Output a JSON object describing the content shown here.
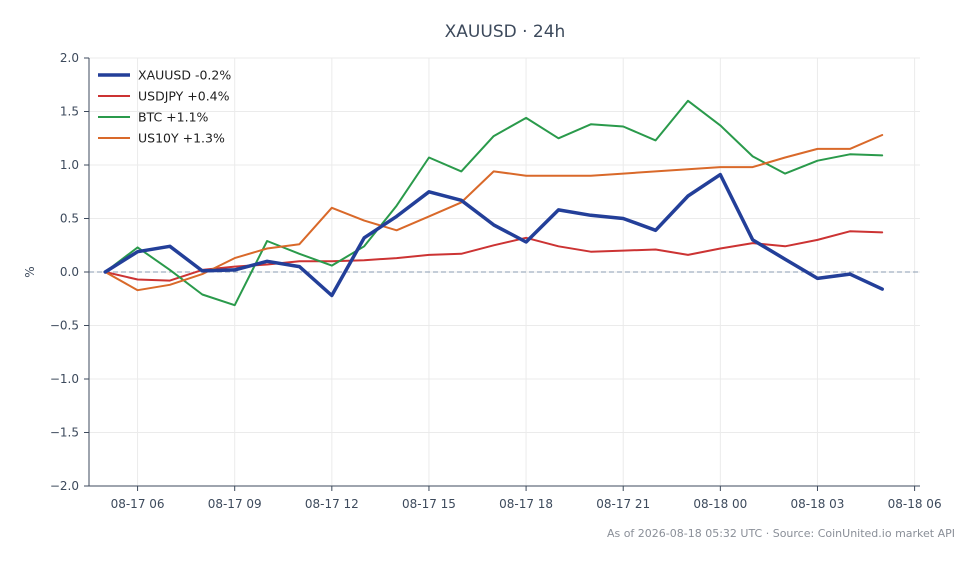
{
  "chart_data": {
    "type": "line",
    "title": "XAUUSD · 24h",
    "xlabel": "",
    "ylabel": "%",
    "ylim": [
      -2.0,
      2.0
    ],
    "yticks": [
      -2.0,
      -1.5,
      -1.0,
      -0.5,
      0.0,
      0.5,
      1.0,
      1.5,
      2.0
    ],
    "ytick_labels": [
      "−2.0",
      "−1.5",
      "−1.0",
      "−0.5",
      "0.0",
      "0.5",
      "1.0",
      "1.5",
      "2.0"
    ],
    "xlim": [
      "2026-08-17 04:30",
      "2026-08-18 06:10"
    ],
    "xticks": [
      "2026-08-17 06:00",
      "2026-08-17 09:00",
      "2026-08-17 12:00",
      "2026-08-17 15:00",
      "2026-08-17 18:00",
      "2026-08-17 21:00",
      "2026-08-18 00:00",
      "2026-08-18 03:00",
      "2026-08-18 06:00"
    ],
    "xtick_labels": [
      "08-17 06",
      "08-17 09",
      "08-17 12",
      "08-17 15",
      "08-17 18",
      "08-17 21",
      "08-18 00",
      "08-18 03",
      "08-18 06"
    ],
    "x": [
      "2026-08-17 05:00",
      "2026-08-17 06:00",
      "2026-08-17 07:00",
      "2026-08-17 08:00",
      "2026-08-17 09:00",
      "2026-08-17 10:00",
      "2026-08-17 11:00",
      "2026-08-17 12:00",
      "2026-08-17 13:00",
      "2026-08-17 14:00",
      "2026-08-17 15:00",
      "2026-08-17 16:00",
      "2026-08-17 17:00",
      "2026-08-17 18:00",
      "2026-08-17 19:00",
      "2026-08-17 20:00",
      "2026-08-17 21:00",
      "2026-08-17 22:00",
      "2026-08-17 23:00",
      "2026-08-18 00:00",
      "2026-08-18 01:00",
      "2026-08-18 02:00",
      "2026-08-18 03:00",
      "2026-08-18 04:00",
      "2026-08-18 05:00"
    ],
    "grid": true,
    "legend_position": "top-left",
    "baseline": 0.0,
    "series": [
      {
        "name": "XAUUSD -0.2%",
        "color": "#233f99",
        "values": [
          0.0,
          0.19,
          0.24,
          0.01,
          0.02,
          0.1,
          0.05,
          -0.22,
          0.32,
          0.52,
          0.75,
          0.67,
          0.44,
          0.28,
          0.58,
          0.53,
          0.5,
          0.39,
          0.71,
          0.91,
          0.3,
          0.12,
          -0.06,
          -0.02,
          -0.16
        ]
      },
      {
        "name": "USDJPY +0.4%",
        "color": "#cc3333",
        "values": [
          0.0,
          -0.07,
          -0.08,
          0.02,
          0.05,
          0.07,
          0.1,
          0.1,
          0.11,
          0.13,
          0.16,
          0.17,
          0.25,
          0.32,
          0.24,
          0.19,
          0.2,
          0.21,
          0.16,
          0.22,
          0.27,
          0.24,
          0.3,
          0.38,
          0.37
        ]
      },
      {
        "name": "BTC +1.1%",
        "color": "#2a9a4b",
        "values": [
          0.0,
          0.23,
          0.02,
          -0.21,
          -0.31,
          0.29,
          0.17,
          0.06,
          0.24,
          0.62,
          1.07,
          0.94,
          1.27,
          1.44,
          1.25,
          1.38,
          1.36,
          1.23,
          1.6,
          1.37,
          1.08,
          0.92,
          1.04,
          1.1,
          1.09
        ]
      },
      {
        "name": "US10Y +1.3%",
        "color": "#d9692a",
        "values": [
          0.0,
          -0.17,
          -0.12,
          -0.02,
          0.13,
          0.22,
          0.26,
          0.6,
          0.48,
          0.39,
          0.52,
          0.65,
          0.94,
          0.9,
          0.9,
          0.9,
          0.92,
          0.94,
          0.96,
          0.98,
          0.98,
          1.07,
          1.15,
          1.15,
          1.28
        ]
      }
    ]
  },
  "footer": {
    "note": "As of 2026-08-18 05:32 UTC · Source: CoinUnited.io market API"
  }
}
